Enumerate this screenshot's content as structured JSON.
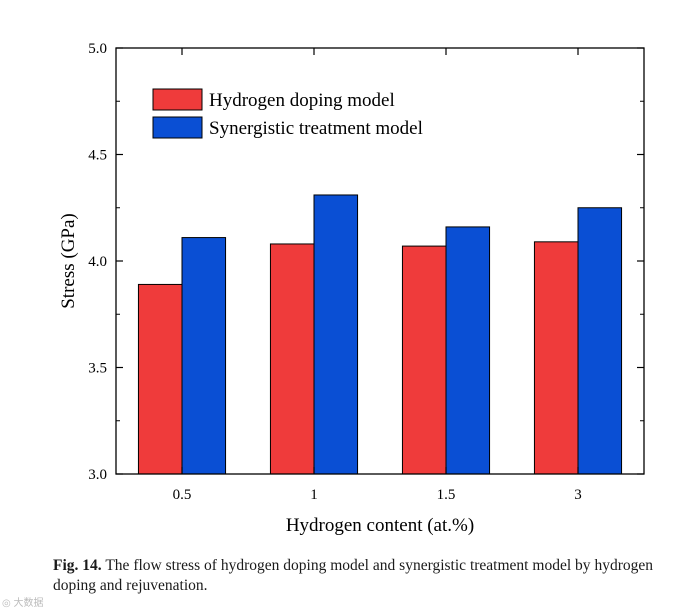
{
  "chart_data": {
    "type": "bar",
    "title": "",
    "xlabel": "Hydrogen content (at.%)",
    "ylabel": "Stress (GPa)",
    "categories": [
      "0.5",
      "1",
      "1.5",
      "3"
    ],
    "series": [
      {
        "name": "Hydrogen doping model",
        "values": [
          3.89,
          4.08,
          4.07,
          4.09
        ],
        "color": "#ef3b3b"
      },
      {
        "name": "Synergistic treatment model",
        "values": [
          4.11,
          4.31,
          4.16,
          4.25
        ],
        "color": "#0a4fd4"
      }
    ],
    "ylim": [
      3.0,
      5.0
    ],
    "yticks": [
      "3.0",
      "3.5",
      "4.0",
      "4.5",
      "5.0"
    ],
    "legend_position": "top-left",
    "grid": false
  },
  "caption": {
    "label": "Fig. 14.",
    "text": "The flow stress of hydrogen doping model and synergistic treatment model by hydrogen doping and rejuvenation."
  },
  "watermark": {
    "text": "大数据"
  }
}
